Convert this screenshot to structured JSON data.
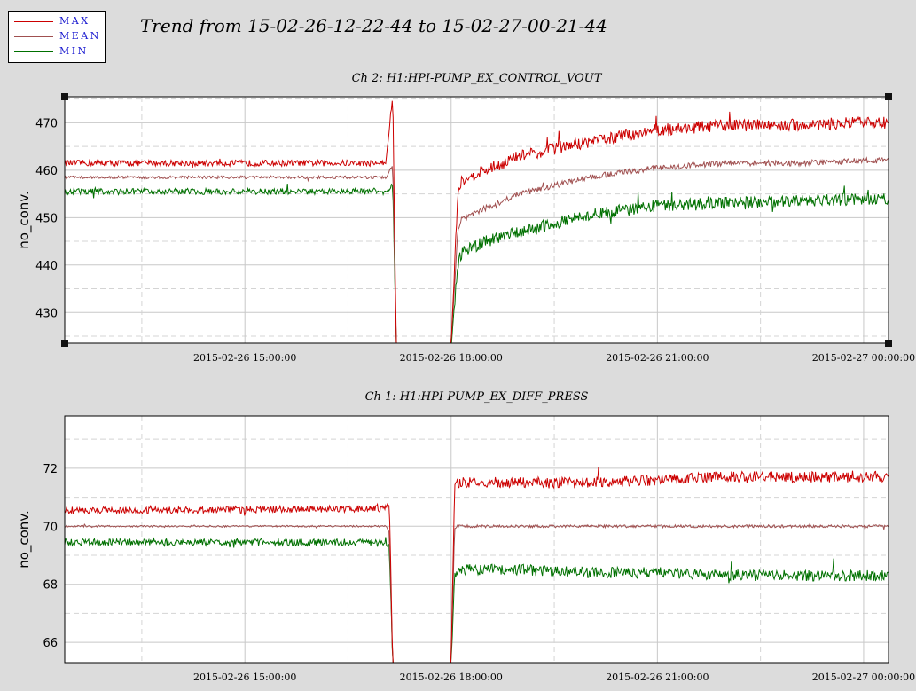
{
  "page_title": "Trend from 15-02-26-12-22-44 to 15-02-27-00-21-44",
  "legend": [
    {
      "label": "MAX",
      "color": "#cc0000"
    },
    {
      "label": "MEAN",
      "color": "#a05050"
    },
    {
      "label": "MIN",
      "color": "#007000"
    }
  ],
  "chart_data": [
    {
      "type": "line",
      "title": "Ch 2: H1:HPI-PUMP_EX_CONTROL_VOUT",
      "ylabel": "no_conv.",
      "xlabel": "",
      "x_tick_labels": [
        "2015-02-26 15:00:00",
        "2015-02-26 18:00:00",
        "2015-02-26 21:00:00",
        "2015-02-27 00:00:00"
      ],
      "x_tick_hours": [
        15,
        18,
        21,
        24
      ],
      "xlim_hours": [
        12.379,
        24.362
      ],
      "ylim": [
        423.5,
        475.5
      ],
      "y_ticks": [
        430,
        440,
        450,
        460,
        470
      ],
      "grid": true,
      "x_hours": [
        12.38,
        14.0,
        16.0,
        17.05,
        17.15,
        17.2,
        18.0,
        18.1,
        18.15,
        18.5,
        19.0,
        20.0,
        21.0,
        22.0,
        23.0,
        24.0,
        24.36
      ],
      "series": [
        {
          "name": "MAX",
          "values": [
            461.5,
            461.5,
            461.5,
            461.5,
            476,
            423.5,
            423.5,
            456,
            458,
            460,
            463,
            466,
            468.5,
            469.5,
            469.5,
            470,
            470
          ]
        },
        {
          "name": "MEAN",
          "values": [
            458.5,
            458.5,
            458.5,
            458.5,
            461,
            423.5,
            423.5,
            448,
            449.5,
            452,
            455,
            458.5,
            460.5,
            461.5,
            461.5,
            462,
            462
          ]
        },
        {
          "name": "MIN",
          "values": [
            455.5,
            455.5,
            455.5,
            455.5,
            457,
            423.5,
            423.5,
            440.5,
            442.5,
            445,
            447,
            450.5,
            452.5,
            453,
            453.5,
            454,
            454
          ]
        }
      ]
    },
    {
      "type": "line",
      "title": "Ch 1: H1:HPI-PUMP_EX_DIFF_PRESS",
      "ylabel": "no_conv.",
      "xlabel": "",
      "x_tick_labels": [
        "2015-02-26 15:00:00",
        "2015-02-26 18:00:00",
        "2015-02-26 21:00:00",
        "2015-02-27 00:00:00"
      ],
      "x_tick_hours": [
        15,
        18,
        21,
        24
      ],
      "xlim_hours": [
        12.379,
        24.362
      ],
      "ylim": [
        65.3,
        73.8
      ],
      "y_ticks": [
        66,
        68,
        70,
        72
      ],
      "grid": true,
      "x_hours": [
        12.38,
        14.0,
        16.0,
        17.05,
        17.1,
        17.15,
        18.0,
        18.05,
        18.1,
        19.0,
        20.0,
        21.0,
        22.0,
        23.0,
        24.0,
        24.36
      ],
      "series": [
        {
          "name": "MAX",
          "values": [
            70.55,
            70.55,
            70.6,
            70.6,
            70.8,
            65.3,
            65.3,
            71.3,
            71.5,
            71.5,
            71.5,
            71.6,
            71.7,
            71.7,
            71.7,
            71.7
          ]
        },
        {
          "name": "MEAN",
          "values": [
            70.0,
            70.0,
            70.0,
            70.0,
            69.8,
            65.3,
            65.3,
            69.9,
            70.0,
            70.0,
            70.0,
            70.0,
            70.0,
            70.0,
            70.0,
            70.0
          ]
        },
        {
          "name": "MIN",
          "values": [
            69.45,
            69.45,
            69.45,
            69.45,
            69.3,
            65.3,
            65.3,
            68.3,
            68.5,
            68.5,
            68.4,
            68.4,
            68.3,
            68.3,
            68.3,
            68.3
          ]
        }
      ]
    }
  ]
}
